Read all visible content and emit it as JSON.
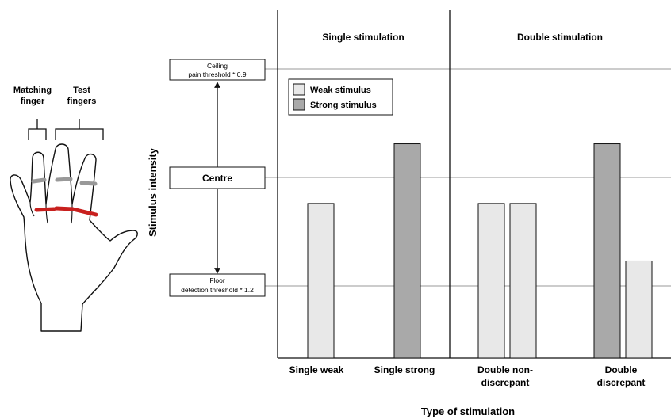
{
  "hand_labels": {
    "matching": [
      "Matching",
      "finger"
    ],
    "test": [
      "Test",
      "fingers"
    ]
  },
  "y_axis_label": "Stimulus intensity",
  "x_axis_label": "Type of stimulation",
  "intensity_levels": {
    "ceiling": [
      "Ceiling",
      "pain threshold * 0.9"
    ],
    "centre": "Centre",
    "floor": [
      "Floor",
      "detection threshold * 1.2"
    ]
  },
  "sections": [
    "Single stimulation",
    "Double stimulation"
  ],
  "legend": [
    {
      "label": "Weak stimulus",
      "color": "#e8e8e8"
    },
    {
      "label": "Strong stimulus",
      "color": "#a9a9a9"
    }
  ],
  "colors": {
    "weak": "#e8e8e8",
    "strong": "#a9a9a9",
    "ring_red": "#c8201e",
    "ring_grey": "#999999"
  },
  "categories": [
    [
      "Single weak"
    ],
    [
      "Single strong"
    ],
    [
      "Double non-",
      "discrepant"
    ],
    [
      "Double",
      "discrepant"
    ]
  ],
  "chart_data": {
    "type": "bar",
    "ylabel": "Stimulus intensity",
    "xlabel": "Type of stimulation",
    "levels": {
      "floor": 0,
      "centre": 1,
      "ceiling": 2
    },
    "groups": [
      {
        "category": "Single weak",
        "bars": [
          {
            "stimulus": "weak",
            "value": 0.76
          }
        ]
      },
      {
        "category": "Single strong",
        "bars": [
          {
            "stimulus": "strong",
            "value": 1.31
          }
        ]
      },
      {
        "category": "Double non-discrepant",
        "bars": [
          {
            "stimulus": "weak",
            "value": 0.76
          },
          {
            "stimulus": "weak",
            "value": 0.76
          }
        ]
      },
      {
        "category": "Double discrepant",
        "bars": [
          {
            "stimulus": "strong",
            "value": 1.31
          },
          {
            "stimulus": "weak",
            "value": 0.23
          }
        ]
      }
    ]
  }
}
